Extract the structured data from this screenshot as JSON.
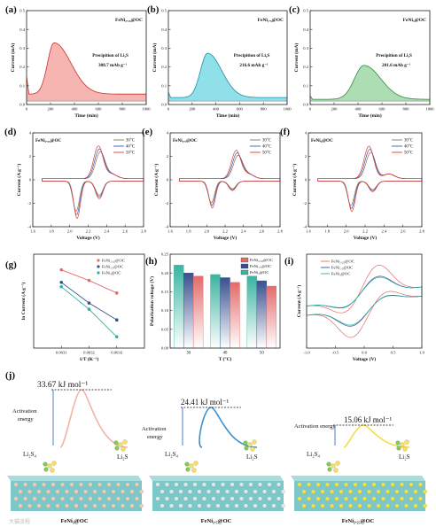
{
  "watermark": "大猫流程",
  "row1": [
    {
      "letter": "(a)",
      "sample": "FeNi₂.₂₅@OC",
      "ptext1": "Precipition of Li₂S",
      "ptext2": "308.7 mAh g⁻¹",
      "xlabel": "Time (min)",
      "ylabel": "Current (mA)",
      "xticks": [
        "0",
        "200",
        "400",
        "600",
        "800",
        "1000"
      ],
      "yticks": [
        "0.0",
        "0.1",
        "0.2",
        "0.3",
        "0.4",
        "0.5"
      ],
      "fill": "#f4a8a3",
      "stroke": "#c9302c",
      "peak": {
        "x": 230,
        "y": 0.335,
        "wl": 55,
        "wr": 140
      },
      "ylim": [
        -0.02,
        0.52
      ],
      "xlim": [
        0,
        1000
      ],
      "baseline": 0.04,
      "spike": 0.1
    },
    {
      "letter": "(b)",
      "sample": "FeNi₁.₅@OC",
      "ptext1": "Precipition of Li₂S",
      "ptext2": "216.6 mAh g⁻¹",
      "xlabel": "Time (min)",
      "ylabel": "Current (mA)",
      "xticks": [
        "0",
        "200",
        "400",
        "600",
        "800",
        "1000"
      ],
      "yticks": [
        "0.0",
        "0.1",
        "0.2",
        "0.3",
        "0.4",
        "0.5"
      ],
      "fill": "#7ddbe5",
      "stroke": "#1c8f9c",
      "peak": {
        "x": 330,
        "y": 0.275,
        "wl": 60,
        "wr": 120
      },
      "ylim": [
        -0.02,
        0.52
      ],
      "xlim": [
        0,
        1000
      ],
      "baseline": 0.02,
      "spike": 0.03
    },
    {
      "letter": "(c)",
      "sample": "FeNi₃@OC",
      "ptext1": "Precipition of Li₂S",
      "ptext2": "201.6 mAh g⁻¹",
      "xlabel": "Time (min)",
      "ylabel": "Current (mA)",
      "xticks": [
        "0",
        "200",
        "400",
        "600",
        "800",
        "1000"
      ],
      "yticks": [
        "0.0",
        "0.1",
        "0.2",
        "0.3",
        "0.4",
        "0.5"
      ],
      "fill": "#9fd8a6",
      "stroke": "#2e8a3c",
      "peak": {
        "x": 450,
        "y": 0.205,
        "wl": 80,
        "wr": 140
      },
      "ylim": [
        -0.02,
        0.52
      ],
      "xlim": [
        0,
        1000
      ],
      "baseline": 0.01,
      "spike": 0.02
    }
  ],
  "row2": [
    {
      "letter": "(d)",
      "sample": "FeNi₂.₂₅@OC",
      "legend": [
        "30°C",
        "40°C",
        "50°C"
      ],
      "xlabel": "Voltage (V)",
      "ylabel": "Current (A g⁻¹)",
      "xticks": [
        "1.6",
        "1.8",
        "2.0",
        "2.2",
        "2.4",
        "2.6",
        "2.8"
      ],
      "yticks": [
        "-4",
        "-2",
        "0",
        "2",
        "4"
      ],
      "xlim": [
        1.6,
        2.8
      ],
      "ylim": [
        -5,
        5
      ],
      "cathodic": [
        {
          "v": 2.07,
          "i": -3.2
        },
        {
          "v": 2.32,
          "i": -1.5
        }
      ],
      "anodic": {
        "v": 2.33,
        "i": 2.8
      }
    },
    {
      "letter": "(e)",
      "sample": "FeNi₁.₅@OC",
      "legend": [
        "30°C",
        "40°C",
        "50°C"
      ],
      "xlabel": "Voltage (V)",
      "ylabel": "Current (A g⁻¹)",
      "xticks": [
        "1.6",
        "1.8",
        "2.0",
        "2.2",
        "2.4",
        "2.6",
        "2.8"
      ],
      "yticks": [
        "-4",
        "-2",
        "0",
        "2",
        "4"
      ],
      "xlim": [
        1.6,
        2.8
      ],
      "ylim": [
        -5,
        5
      ],
      "cathodic": [
        {
          "v": 2.05,
          "i": -2.3
        },
        {
          "v": 2.28,
          "i": -0.8
        }
      ],
      "anodic": {
        "v": 2.34,
        "i": 2.4
      }
    },
    {
      "letter": "(f)",
      "sample": "FeNi₃@OC",
      "legend": [
        "30°C",
        "40°C",
        "50°C"
      ],
      "xlabel": "Voltage (V)",
      "ylabel": "Current (A g⁻¹)",
      "xticks": [
        "1.6",
        "1.8",
        "2.0",
        "2.2",
        "2.4",
        "2.6",
        "2.8"
      ],
      "yticks": [
        "-4",
        "-2",
        "0",
        "2",
        "4"
      ],
      "xlim": [
        1.6,
        2.8
      ],
      "ylim": [
        -5,
        5
      ],
      "cathodic": [
        {
          "v": 2.05,
          "i": -2.6
        },
        {
          "v": 2.28,
          "i": -0.9
        }
      ],
      "anodic": {
        "v": 2.26,
        "i": 2.8
      }
    }
  ],
  "panel_g": {
    "letter": "(g)",
    "xlabel": "1/T (K⁻¹)",
    "ylabel": "ln Current (A g⁻¹)",
    "xticks": [
      "0.0031",
      "0.0032",
      "0.0033"
    ],
    "legend": [
      "FeNi₂.₂₅@OC",
      "FeNi₁.₅@OC",
      "FeNi₃@OC"
    ],
    "chart_data": {
      "type": "scatter",
      "x": [
        0.0031,
        0.0032,
        0.0033
      ],
      "xlim": [
        0.003,
        0.0034
      ],
      "ylim": [
        0.0,
        1.5
      ],
      "series": [
        {
          "name": "FeNi₂.₂₅@OC",
          "values": [
            1.25,
            1.08,
            0.88
          ],
          "color": "#e36b6b"
        },
        {
          "name": "FeNi₁.₅@OC",
          "values": [
            1.05,
            0.72,
            0.45
          ],
          "color": "#39508f"
        },
        {
          "name": "FeNi₃@OC",
          "values": [
            0.98,
            0.62,
            0.18
          ],
          "color": "#2bb3a0"
        }
      ]
    }
  },
  "panel_h": {
    "letter": "(h)",
    "xlabel": "T (°C)",
    "ylabel": "Polarization voltage (V)",
    "yticks": [
      "0.00",
      "0.05",
      "0.10",
      "0.15",
      "0.20",
      "0.25"
    ],
    "legend": [
      "FeNi₂.₂₅@OC",
      "FeNi₁.₅@OC",
      "FeNi₃@OC"
    ],
    "chart_data": {
      "type": "bar",
      "categories": [
        "30",
        "40",
        "50"
      ],
      "ylim": [
        0,
        0.3
      ],
      "series": [
        {
          "name": "FeNi₂.₂₅@OC",
          "values": [
            0.265,
            0.235,
            0.23
          ],
          "color": "#3bb3a0"
        },
        {
          "name": "FeNi₁.₅@OC",
          "values": [
            0.24,
            0.225,
            0.215
          ],
          "color": "#39508f"
        },
        {
          "name": "FeNi₃@OC",
          "values": [
            0.23,
            0.21,
            0.198
          ],
          "color": "#e36b6b"
        }
      ]
    }
  },
  "panel_i": {
    "letter": "(i)",
    "xlabel": "Voltage (V)",
    "ylabel": "Current (A g⁻¹)",
    "xticks": [
      "-1.0",
      "-0.5",
      "0.0",
      "0.5",
      "1.0"
    ],
    "legend": [
      "FeNi₂.₂₅@OC",
      "FeNi₁.₅@OC",
      "FeNi₃@OC"
    ],
    "xlim": [
      -1,
      1
    ],
    "ylim": [
      -20,
      20
    ]
  },
  "panel_j": {
    "letter": "(j)",
    "energies": [
      "33.67 kJ mol⁻¹",
      "24.41 kJ mol⁻¹",
      "15.06 kJ mol⁻¹"
    ],
    "act1": "Activation",
    "act2": "energy",
    "act_inline": "Activation energy",
    "li2s4": "Li₂S₄",
    "li2s": "Li₂S",
    "labels": [
      "FeNi₃@OC",
      "FeNi₁.₅@OC",
      "FeNi₂.₂₅@OC"
    ],
    "curves": [
      "#f3b4a8",
      "#3a8fcf",
      "#f2df4a"
    ],
    "atoms": [
      "#f4c9b6",
      "#dfe9ec",
      "#f5e23c"
    ],
    "base": "#7cc7c7"
  }
}
